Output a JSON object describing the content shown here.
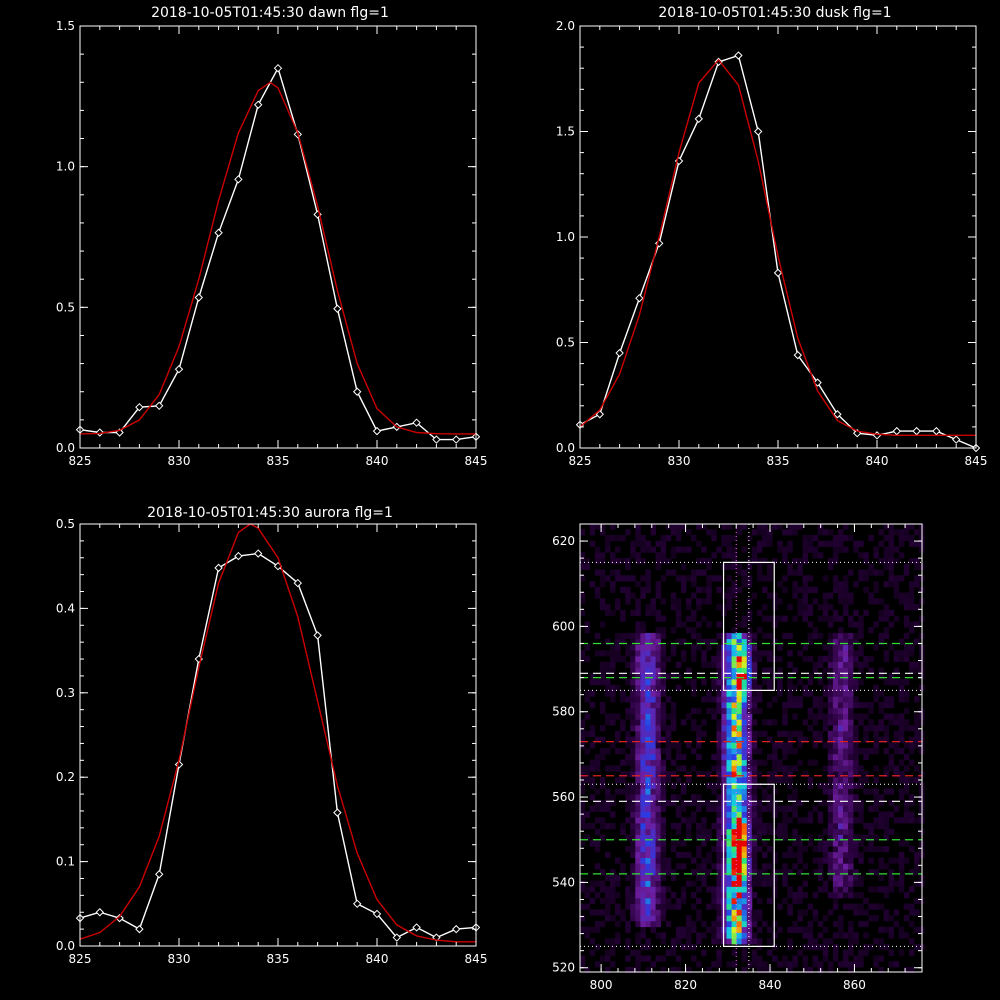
{
  "chart_data": [
    {
      "type": "line",
      "title": "2018-10-05T01:45:30 dawn flg=1",
      "xlim": [
        825,
        845
      ],
      "ylim": [
        0,
        1.5
      ],
      "xticks": [
        825,
        830,
        835,
        840,
        845
      ],
      "yticks": [
        "0.0",
        "0.5",
        "1.0",
        "1.5"
      ],
      "colors": {
        "data": "#ffffff",
        "fit": "#cc0000"
      },
      "series": [
        {
          "style": "data-diamonds",
          "x": [
            825,
            826,
            827,
            828,
            829,
            830,
            831,
            832,
            833,
            834,
            835,
            836,
            837,
            838,
            839,
            840,
            841,
            842,
            843,
            844,
            845
          ],
          "y": [
            0.065,
            0.055,
            0.055,
            0.145,
            0.15,
            0.28,
            0.535,
            0.765,
            0.955,
            1.22,
            1.35,
            1.115,
            0.83,
            0.495,
            0.2,
            0.06,
            0.075,
            0.09,
            0.03,
            0.03,
            0.04
          ]
        },
        {
          "style": "fit",
          "x": [
            825,
            826,
            827,
            828,
            829,
            830,
            831,
            832,
            833,
            834,
            834.6,
            835,
            836,
            837,
            838,
            839,
            840,
            841,
            842,
            843,
            844,
            845
          ],
          "y": [
            0.05,
            0.052,
            0.063,
            0.1,
            0.19,
            0.36,
            0.6,
            0.88,
            1.12,
            1.27,
            1.3,
            1.28,
            1.12,
            0.86,
            0.56,
            0.3,
            0.14,
            0.075,
            0.055,
            0.051,
            0.05,
            0.05
          ]
        }
      ]
    },
    {
      "type": "line",
      "title": "2018-10-05T01:45:30 dusk flg=1",
      "xlim": [
        825,
        845
      ],
      "ylim": [
        0,
        2.0
      ],
      "xticks": [
        825,
        830,
        835,
        840,
        845
      ],
      "yticks": [
        "0.0",
        "0.5",
        "1.0",
        "1.5",
        "2.0"
      ],
      "colors": {
        "data": "#ffffff",
        "fit": "#cc0000"
      },
      "series": [
        {
          "style": "data-diamonds",
          "x": [
            825,
            826,
            827,
            828,
            829,
            830,
            831,
            832,
            833,
            834,
            835,
            836,
            837,
            838,
            839,
            840,
            841,
            842,
            843,
            844,
            845
          ],
          "y": [
            0.11,
            0.16,
            0.45,
            0.71,
            0.97,
            1.36,
            1.56,
            1.83,
            1.86,
            1.5,
            0.83,
            0.44,
            0.31,
            0.16,
            0.07,
            0.06,
            0.08,
            0.08,
            0.08,
            0.04,
            0.0
          ]
        },
        {
          "style": "fit",
          "x": [
            825,
            826,
            827,
            828,
            829,
            830,
            831,
            832,
            833,
            834,
            835,
            836,
            837,
            838,
            839,
            840,
            841,
            842,
            843,
            844,
            845
          ],
          "y": [
            0.1,
            0.18,
            0.35,
            0.63,
            1.0,
            1.4,
            1.73,
            1.84,
            1.72,
            1.36,
            0.91,
            0.52,
            0.27,
            0.13,
            0.08,
            0.065,
            0.06,
            0.06,
            0.06,
            0.06,
            0.06
          ]
        }
      ]
    },
    {
      "type": "line",
      "title": "2018-10-05T01:45:30 aurora flg=1",
      "xlim": [
        825,
        845
      ],
      "ylim": [
        0,
        0.5
      ],
      "xticks": [
        825,
        830,
        835,
        840,
        845
      ],
      "yticks": [
        "0.0",
        "0.1",
        "0.2",
        "0.3",
        "0.4",
        "0.5"
      ],
      "colors": {
        "data": "#ffffff",
        "fit": "#cc0000"
      },
      "series": [
        {
          "style": "data-diamonds",
          "x": [
            825,
            826,
            827,
            828,
            829,
            830,
            831,
            832,
            833,
            834,
            835,
            836,
            837,
            838,
            839,
            840,
            841,
            842,
            843,
            844,
            845
          ],
          "y": [
            0.033,
            0.04,
            0.033,
            0.02,
            0.085,
            0.215,
            0.34,
            0.448,
            0.462,
            0.465,
            0.45,
            0.43,
            0.368,
            0.158,
            0.05,
            0.038,
            0.01,
            0.022,
            0.01,
            0.02,
            0.022
          ]
        },
        {
          "style": "fit",
          "x": [
            825,
            826,
            827,
            828,
            829,
            830,
            831,
            832,
            833,
            833.6,
            834,
            835,
            836,
            837,
            838,
            839,
            840,
            841,
            842,
            843,
            844,
            845
          ],
          "y": [
            0.008,
            0.016,
            0.035,
            0.07,
            0.13,
            0.22,
            0.33,
            0.43,
            0.49,
            0.5,
            0.495,
            0.46,
            0.39,
            0.29,
            0.19,
            0.11,
            0.055,
            0.025,
            0.012,
            0.007,
            0.005,
            0.005
          ]
        }
      ]
    },
    {
      "type": "heatmap",
      "title": "",
      "xlim": [
        795,
        876
      ],
      "ylim": [
        519,
        624
      ],
      "xticks": [
        800,
        820,
        840,
        860
      ],
      "yticks": [
        520,
        540,
        560,
        580,
        600,
        620
      ],
      "colormap": "rainbow",
      "columns": [
        {
          "x": 811,
          "y_range": [
            532,
            596
          ],
          "peak": 0.45
        },
        {
          "x": 832,
          "y_range": [
            528,
            596
          ],
          "peak": 1.0
        },
        {
          "x": 857,
          "y_range": [
            540,
            596
          ],
          "peak": 0.25
        }
      ],
      "hot_spots": [
        {
          "x": 833,
          "y": 551,
          "level": 1.0
        },
        {
          "x": 833,
          "y": 544,
          "level": 0.9
        },
        {
          "x": 834,
          "y": 590,
          "level": 0.75
        }
      ],
      "boxes": [
        {
          "x": [
            829,
            841
          ],
          "y": [
            585,
            615
          ],
          "color": "#ffffff"
        },
        {
          "x": [
            829,
            841
          ],
          "y": [
            525,
            563
          ],
          "color": "#ffffff"
        }
      ],
      "vlines_dotted": [
        {
          "x": 832,
          "color": "#ff66ff"
        },
        {
          "x": 835,
          "color": "#ffffff"
        }
      ],
      "hlines_dotted": [
        {
          "y": 615,
          "color": "#ffffff"
        },
        {
          "y": 585,
          "color": "#ffffff"
        },
        {
          "y": 563,
          "color": "#ffffff"
        },
        {
          "y": 525,
          "color": "#ffffff"
        }
      ],
      "hlines_dashed": [
        {
          "y": 596,
          "color": "#33dd33"
        },
        {
          "y": 588,
          "color": "#33dd33"
        },
        {
          "y": 589,
          "color": "#ffffff"
        },
        {
          "y": 573,
          "color": "#dd2222"
        },
        {
          "y": 565,
          "color": "#dd2222"
        },
        {
          "y": 559,
          "color": "#ffffff"
        },
        {
          "y": 550,
          "color": "#33dd33"
        },
        {
          "y": 542,
          "color": "#33dd33"
        }
      ]
    }
  ]
}
